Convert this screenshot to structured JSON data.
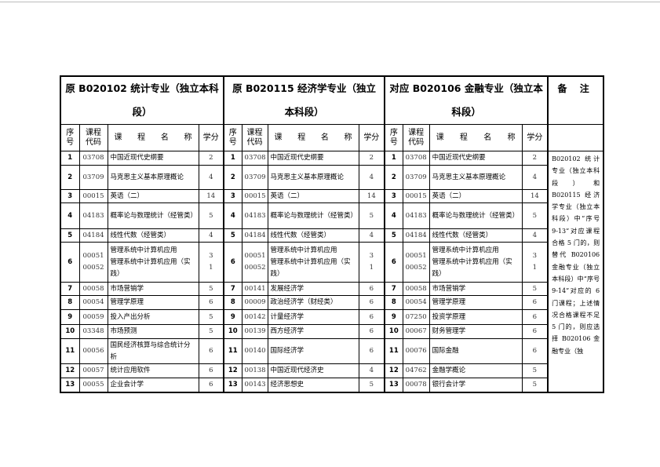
{
  "groups": [
    {
      "title": "原 B020102 统计专业（独立本科段）"
    },
    {
      "title": "原 B020115 经济学专业（独立本科段）"
    },
    {
      "title": "对应 B020106 金融专业（独立本科段）"
    }
  ],
  "remarks_header": "备 注",
  "headers": {
    "seq": "序号",
    "code": "课程代码",
    "name": "课 程 名 称",
    "credits": "学分"
  },
  "rows": [
    {
      "seq": "1",
      "g": [
        {
          "code": "03708",
          "name": "中国近现代史纲要",
          "cr": "2"
        },
        {
          "code": "03708",
          "name": "中国近现代史纲要",
          "cr": "2"
        },
        {
          "code": "03708",
          "name": "中国近现代史纲要",
          "cr": "2"
        }
      ]
    },
    {
      "seq": "2",
      "g": [
        {
          "code": "03709",
          "name": "马克思主义基本原理概论",
          "cr": "4"
        },
        {
          "code": "03709",
          "name": "马克思主义基本原理概论",
          "cr": "4"
        },
        {
          "code": "03709",
          "name": "马克思主义基本原理概论",
          "cr": "4"
        }
      ]
    },
    {
      "seq": "3",
      "g": [
        {
          "code": "00015",
          "name": "英语（二）",
          "cr": "14"
        },
        {
          "code": "00015",
          "name": "英语（二）",
          "cr": "14"
        },
        {
          "code": "00015",
          "name": "英语（二）",
          "cr": "14"
        }
      ]
    },
    {
      "seq": "4",
      "g": [
        {
          "code": "04183",
          "name": "概率论与数理统计（经管类）",
          "cr": "5"
        },
        {
          "code": "04183",
          "name": "概率论与数理统计（经管类）",
          "cr": "5"
        },
        {
          "code": "04183",
          "name": "概率论与数理统计（经管类）",
          "cr": "5"
        }
      ]
    },
    {
      "seq": "5",
      "g": [
        {
          "code": "04184",
          "name": "线性代数（经管类）",
          "cr": "4"
        },
        {
          "code": "04184",
          "name": "线性代数（经管类）",
          "cr": "4"
        },
        {
          "code": "04184",
          "name": "线性代数（经管类）",
          "cr": "4"
        }
      ]
    },
    {
      "seq": "6",
      "g": [
        {
          "code": "00051",
          "code2": "00052",
          "name": "管理系统中计算机应用",
          "name2": "管理系统中计算机应用（实践）",
          "cr": "3",
          "cr2": "1"
        },
        {
          "code": "00051",
          "code2": "00052",
          "name": "管理系统中计算机应用",
          "name2": "管理系统中计算机应用（实践）",
          "cr": "3",
          "cr2": "1"
        },
        {
          "code": "00051",
          "code2": "00052",
          "name": "管理系统中计算机应用",
          "name2": "管理系统中计算机应用（实践）",
          "cr": "3",
          "cr2": "1"
        }
      ]
    },
    {
      "seq": "7",
      "g": [
        {
          "code": "00058",
          "name": "市场营销学",
          "cr": "5"
        },
        {
          "code": "00141",
          "name": "发展经济学",
          "cr": "6"
        },
        {
          "code": "00058",
          "name": "市场营销学",
          "cr": "5"
        }
      ]
    },
    {
      "seq": "8",
      "g": [
        {
          "code": "00054",
          "name": "管理学原理",
          "cr": "6"
        },
        {
          "code": "00009",
          "name": "政治经济学（财经类）",
          "cr": "6"
        },
        {
          "code": "00054",
          "name": "管理学原理",
          "cr": "6"
        }
      ]
    },
    {
      "seq": "9",
      "g": [
        {
          "code": "00059",
          "name": "投入产出分析",
          "cr": "5"
        },
        {
          "code": "00142",
          "name": "计量经济学",
          "cr": "6"
        },
        {
          "code": "07250",
          "name": "投资学原理",
          "cr": "6"
        }
      ]
    },
    {
      "seq": "10",
      "g": [
        {
          "code": "03348",
          "name": "市场预测",
          "cr": "5"
        },
        {
          "code": "00139",
          "name": "西方经济学",
          "cr": "6"
        },
        {
          "code": "00067",
          "name": "财务管理学",
          "cr": "6"
        }
      ]
    },
    {
      "seq": "11",
      "g": [
        {
          "code": "00056",
          "name": "国民经济核算与综合统计分析",
          "cr": "6"
        },
        {
          "code": "00140",
          "name": "国际经济学",
          "cr": "6"
        },
        {
          "code": "00076",
          "name": "国际金融",
          "cr": "6"
        }
      ]
    },
    {
      "seq": "12",
      "g": [
        {
          "code": "00057",
          "name": "统计应用软件",
          "cr": "6"
        },
        {
          "code": "00138",
          "name": "中国近现代经济史",
          "cr": "4"
        },
        {
          "code": "04762",
          "name": "金融学概论",
          "cr": "5"
        }
      ]
    },
    {
      "seq": "13",
      "g": [
        {
          "code": "00055",
          "name": "企业会计学",
          "cr": "6"
        },
        {
          "code": "00143",
          "name": "经济思想史",
          "cr": "5"
        },
        {
          "code": "00078",
          "name": "银行会计学",
          "cr": "5"
        }
      ]
    }
  ],
  "remarks": "B020102 统计专业（独立本科段）和 B020115 经济学专业（独立本科段）中“序号 9-13”对应课程合格 5 门的，则替代 B020106 金融专业（独立本科段）中“序号 9-14”对应的 6 门课程；上述情况合格课程不足 5 门的，则应选择 B020106 金融专业（独"
}
